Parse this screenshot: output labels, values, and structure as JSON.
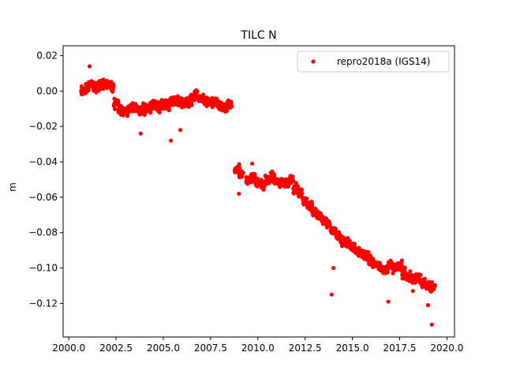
{
  "chart_data": {
    "type": "scatter",
    "title": "TILC N",
    "xlabel": "",
    "ylabel": "m",
    "xlim": [
      1999.7,
      2020.4
    ],
    "ylim": [
      -0.139,
      0.0256
    ],
    "xticks": [
      2000.0,
      2002.5,
      2005.0,
      2007.5,
      2010.0,
      2012.5,
      2015.0,
      2017.5,
      2020.0
    ],
    "xtick_labels": [
      "2000.0",
      "2002.5",
      "2005.0",
      "2007.5",
      "2010.0",
      "2012.5",
      "2015.0",
      "2017.5",
      "2020.0"
    ],
    "yticks": [
      0.02,
      0.0,
      -0.02,
      -0.04,
      -0.06,
      -0.08,
      -0.1,
      -0.12
    ],
    "ytick_labels": [
      "0.02",
      "0.00",
      "−0.02",
      "−0.04",
      "−0.06",
      "−0.08",
      "−0.10",
      "−0.12"
    ],
    "grid": false,
    "legend": {
      "placement": "top-right",
      "entries": [
        "repro2018a (IGS14)"
      ]
    },
    "series": [
      {
        "name": "repro2018a (IGS14)",
        "color": "#ff0000",
        "marker": "dot",
        "points_approx": [
          [
            2000.75,
            0.0
          ],
          [
            2001.0,
            0.002
          ],
          [
            2001.25,
            0.003
          ],
          [
            2001.5,
            0.002
          ],
          [
            2001.75,
            0.004
          ],
          [
            2002.0,
            0.004
          ],
          [
            2002.25,
            0.002
          ],
          [
            2002.5,
            -0.007
          ],
          [
            2002.75,
            -0.01
          ],
          [
            2003.0,
            -0.011
          ],
          [
            2003.25,
            -0.01
          ],
          [
            2003.5,
            -0.009
          ],
          [
            2003.75,
            -0.011
          ],
          [
            2004.0,
            -0.01
          ],
          [
            2004.25,
            -0.009
          ],
          [
            2004.5,
            -0.008
          ],
          [
            2004.75,
            -0.009
          ],
          [
            2005.0,
            -0.007
          ],
          [
            2005.25,
            -0.008
          ],
          [
            2005.5,
            -0.005
          ],
          [
            2005.75,
            -0.006
          ],
          [
            2006.0,
            -0.007
          ],
          [
            2006.25,
            -0.006
          ],
          [
            2006.5,
            -0.005
          ],
          [
            2006.75,
            -0.003
          ],
          [
            2007.0,
            -0.004
          ],
          [
            2007.25,
            -0.006
          ],
          [
            2007.5,
            -0.007
          ],
          [
            2007.75,
            -0.006
          ],
          [
            2008.0,
            -0.009
          ],
          [
            2008.25,
            -0.01
          ],
          [
            2008.5,
            -0.008
          ],
          [
            2008.9,
            -0.044
          ],
          [
            2009.1,
            -0.047
          ],
          [
            2009.5,
            -0.05
          ],
          [
            2009.75,
            -0.049
          ],
          [
            2010.0,
            -0.052
          ],
          [
            2010.25,
            -0.053
          ],
          [
            2010.5,
            -0.05
          ],
          [
            2010.75,
            -0.049
          ],
          [
            2011.0,
            -0.051
          ],
          [
            2011.25,
            -0.053
          ],
          [
            2011.5,
            -0.052
          ],
          [
            2011.75,
            -0.05
          ],
          [
            2012.0,
            -0.055
          ],
          [
            2012.25,
            -0.058
          ],
          [
            2012.5,
            -0.062
          ],
          [
            2012.75,
            -0.065
          ],
          [
            2013.0,
            -0.068
          ],
          [
            2013.25,
            -0.07
          ],
          [
            2013.5,
            -0.073
          ],
          [
            2013.75,
            -0.076
          ],
          [
            2014.0,
            -0.079
          ],
          [
            2014.25,
            -0.082
          ],
          [
            2014.5,
            -0.085
          ],
          [
            2014.75,
            -0.086
          ],
          [
            2015.0,
            -0.088
          ],
          [
            2015.25,
            -0.09
          ],
          [
            2015.5,
            -0.092
          ],
          [
            2015.75,
            -0.094
          ],
          [
            2016.0,
            -0.096
          ],
          [
            2016.25,
            -0.098
          ],
          [
            2016.5,
            -0.099
          ],
          [
            2016.75,
            -0.101
          ],
          [
            2017.0,
            -0.098
          ],
          [
            2017.25,
            -0.1
          ],
          [
            2017.5,
            -0.099
          ],
          [
            2017.75,
            -0.103
          ],
          [
            2018.0,
            -0.105
          ],
          [
            2018.25,
            -0.107
          ],
          [
            2018.5,
            -0.106
          ],
          [
            2018.75,
            -0.108
          ],
          [
            2019.0,
            -0.11
          ],
          [
            2019.25,
            -0.111
          ]
        ],
        "outliers": [
          [
            2001.1,
            0.014
          ],
          [
            2003.8,
            -0.024
          ],
          [
            2005.4,
            -0.028
          ],
          [
            2005.9,
            -0.022
          ],
          [
            2009.7,
            -0.041
          ],
          [
            2009.0,
            -0.058
          ],
          [
            2013.9,
            -0.115
          ],
          [
            2014.0,
            -0.1
          ],
          [
            2016.9,
            -0.119
          ],
          [
            2018.2,
            -0.113
          ],
          [
            2019.2,
            -0.132
          ],
          [
            2019.0,
            -0.121
          ]
        ]
      }
    ]
  }
}
